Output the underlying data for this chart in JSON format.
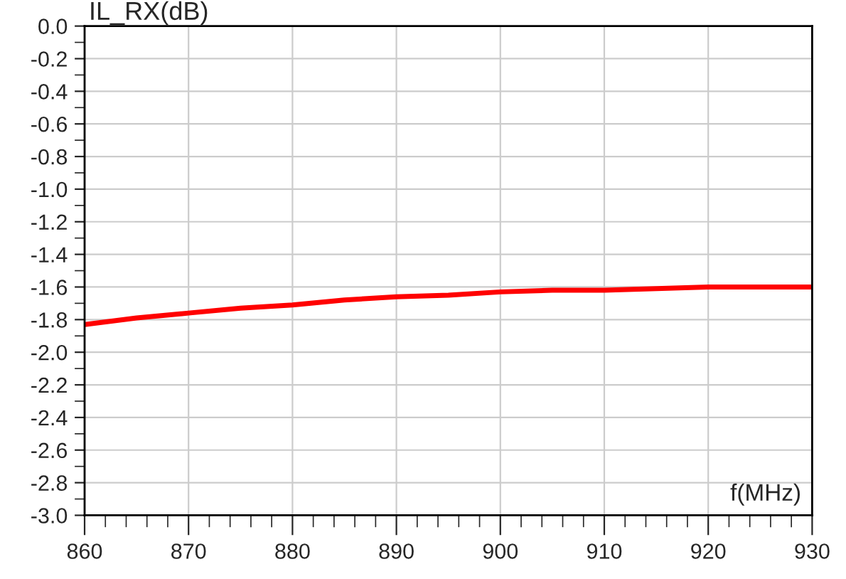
{
  "chart_data": {
    "type": "line",
    "xlabel": "f(MHz)",
    "ylabel": "IL_RX(dB)",
    "x": [
      860,
      865,
      870,
      875,
      880,
      885,
      890,
      895,
      900,
      905,
      910,
      915,
      920,
      925,
      930
    ],
    "series": [
      {
        "color": "#ff0000",
        "values": [
          -1.83,
          -1.79,
          -1.76,
          -1.73,
          -1.71,
          -1.68,
          -1.66,
          -1.65,
          -1.63,
          -1.62,
          -1.62,
          -1.61,
          -1.6,
          -1.6,
          -1.6
        ]
      }
    ],
    "xlim": [
      860,
      930
    ],
    "xticks": [
      860,
      870,
      880,
      890,
      900,
      910,
      920,
      930
    ],
    "ylim": [
      -3.0,
      0.0
    ],
    "yticks": [
      {
        "value": -3.0,
        "label": "-3.0"
      },
      {
        "value": -2.8,
        "label": "-2.8"
      },
      {
        "value": -2.6,
        "label": "-2.6"
      },
      {
        "value": -2.4,
        "label": "-2.4"
      },
      {
        "value": -2.2,
        "label": "-2.2"
      },
      {
        "value": -2.0,
        "label": "-2.0"
      },
      {
        "value": -1.8,
        "label": "-1.8"
      },
      {
        "value": -1.6,
        "label": "-1.6"
      },
      {
        "value": -1.4,
        "label": "-1.4"
      },
      {
        "value": -1.2,
        "label": "-1.2"
      },
      {
        "value": -1.0,
        "label": "-1.0"
      },
      {
        "value": -0.8,
        "label": "-0.8"
      },
      {
        "value": -0.6,
        "label": "-0.6"
      },
      {
        "value": -0.4,
        "label": "-0.4"
      },
      {
        "value": -0.2,
        "label": "-0.2"
      },
      {
        "value": 0.0,
        "label": "0.0"
      }
    ],
    "grid": true,
    "marker": "none",
    "line_style": "solid"
  }
}
